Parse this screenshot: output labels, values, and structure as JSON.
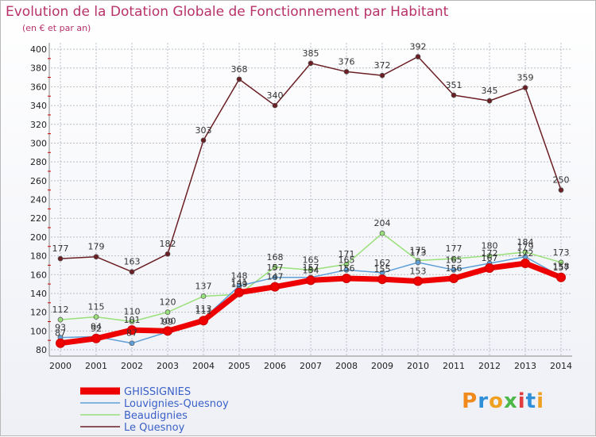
{
  "header": {
    "title": "Evolution de la Dotation Globale de Fonctionnement par Habitant",
    "subtitle": "(en € et par an)"
  },
  "logo": {
    "text": "Proxiti"
  },
  "chart_data": {
    "type": "line",
    "x": [
      2000,
      2001,
      2002,
      2003,
      2004,
      2005,
      2006,
      2007,
      2008,
      2009,
      2010,
      2011,
      2012,
      2013,
      2014
    ],
    "ylim": [
      80,
      400
    ],
    "yticks": [
      80,
      100,
      120,
      140,
      160,
      180,
      200,
      220,
      240,
      260,
      280,
      300,
      320,
      340,
      360,
      380,
      400
    ],
    "grid": true,
    "legend": "bottom-left",
    "series": [
      {
        "name": "Le Quesnoy",
        "color": "#6b1f24",
        "values": [
          177,
          179,
          163,
          182,
          303,
          368,
          340,
          385,
          376,
          372,
          392,
          351,
          345,
          359,
          250
        ]
      },
      {
        "name": "Beaudignies",
        "color": "#99e07a",
        "values": [
          112,
          115,
          110,
          120,
          137,
          139,
          168,
          165,
          171,
          204,
          175,
          177,
          180,
          184,
          173
        ]
      },
      {
        "name": "Louvignies-Quesnoy",
        "color": "#5f9fd8",
        "values": [
          93,
          94,
          87,
          99,
          113,
          148,
          157,
          157,
          165,
          162,
          173,
          165,
          172,
          179,
          158
        ]
      },
      {
        "name": "GHISSIGNIES",
        "color": "#ee0000",
        "values": [
          87,
          92,
          101,
          100,
          111,
          141,
          147,
          154,
          156,
          155,
          153,
          156,
          167,
          172,
          157
        ]
      }
    ]
  }
}
